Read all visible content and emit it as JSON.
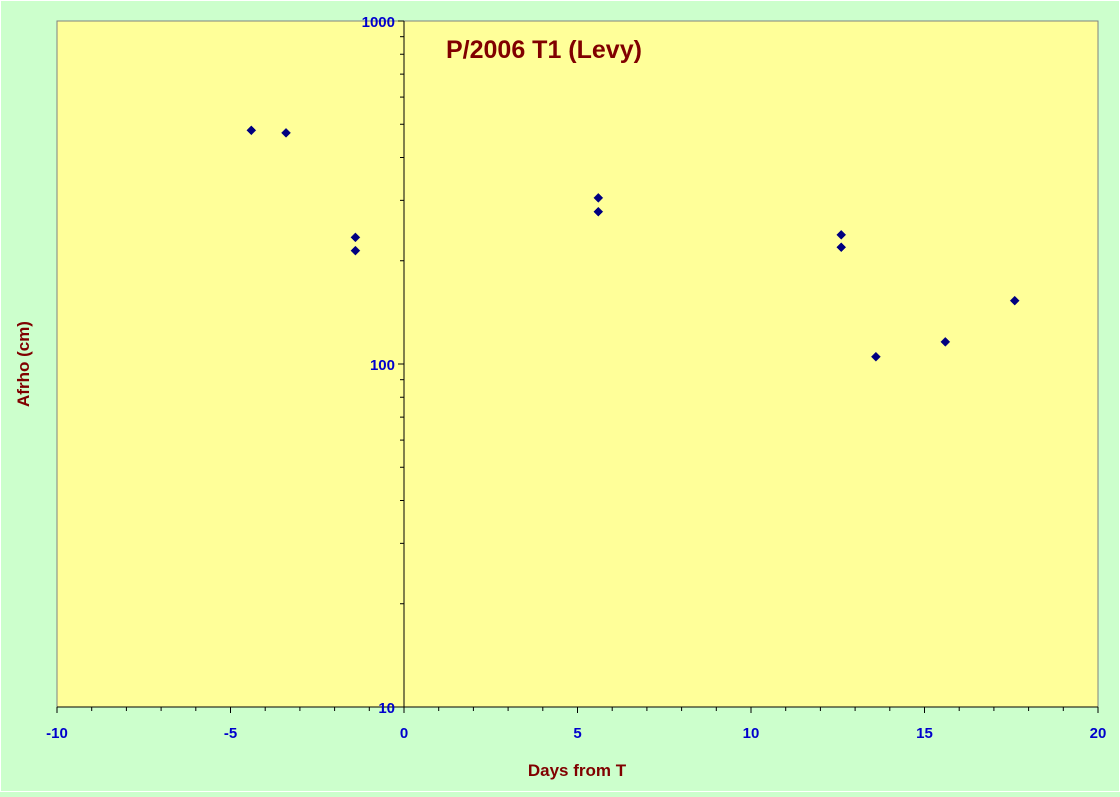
{
  "chart_data": {
    "type": "scatter",
    "title": "P/2006 T1 (Levy)",
    "xlabel": "Days from T",
    "ylabel": "Afrho (cm)",
    "xlim": [
      -10,
      20
    ],
    "ylim": [
      10,
      1000
    ],
    "y_scale": "log",
    "x_ticks": [
      "-10",
      "-5",
      "0",
      "5",
      "10",
      "15",
      "20"
    ],
    "y_ticks": [
      "10",
      "100",
      "1000"
    ],
    "grid": false,
    "legend": "none",
    "x": [
      -4.4,
      -3.4,
      -1.4,
      -1.4,
      5.6,
      5.6,
      12.6,
      12.6,
      13.6,
      15.6,
      17.6
    ],
    "y": [
      480,
      472,
      234,
      214,
      305,
      278,
      238,
      219,
      105,
      116,
      153
    ],
    "colors": {
      "page_background": "#ccffcc",
      "plot_background": "#ffff99",
      "marker": "#000080",
      "tick_label": "#0000cc",
      "title": "#800000",
      "axis_title": "#800000",
      "axis_line": "#000000"
    }
  }
}
